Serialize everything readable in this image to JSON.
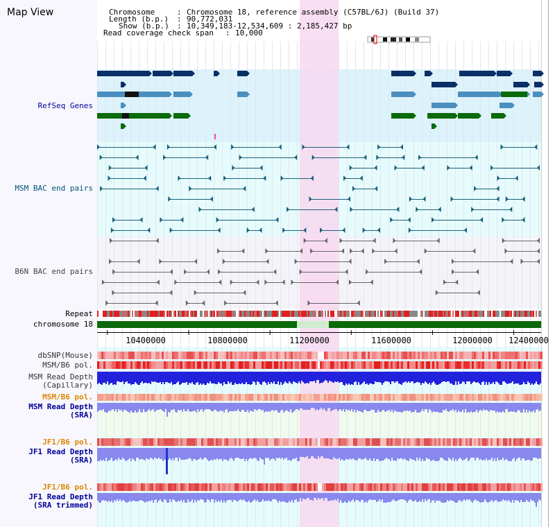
{
  "title": "Map View",
  "header": {
    "chromosome_label": "Chromosome",
    "chromosome_value": "Chromosome 18, reference assembly (C57BL/6J) (Build 37)",
    "length_label": "Length (b.p.)",
    "length_value": "90,772,031",
    "show_label": "Show (b.p.)",
    "show_value": "10,349,183-12,534,609 : 2,185,427 bp",
    "coverage_label": "Read coverage check span",
    "coverage_value": "10,000"
  },
  "tracks": {
    "refseq": "RefSeq Genes",
    "msm_bac": "MSM BAC end pairs",
    "b6n_bac": "B6N BAC end pairs",
    "repeat": "Repeat",
    "chromosome": "chromosome 18",
    "dbsnp": "dbSNP(Mouse)",
    "msm_pol": "MSM/B6 pol.",
    "msm_depth_cap_1": "MSM Read Depth",
    "msm_depth_cap_2": "(Capillary)",
    "msm_pol2": "MSM/B6 pol.",
    "msm_depth_sra_1": "MSM Read Depth",
    "msm_depth_sra_2": "(SRA)",
    "jf1_pol": "JF1/B6 pol.",
    "jf1_depth_sra_1": "JF1 Read Depth",
    "jf1_depth_sra_2": "(SRA)",
    "jf1_pol2": "JF1/B6 pol.",
    "jf1_depth_trim_1": "JF1 Read Depth",
    "jf1_depth_trim_2": "(SRA trimmed)"
  },
  "axis": {
    "ticks": [
      "10400000",
      "10800000",
      "11200000",
      "11600000",
      "12000000",
      "12400000"
    ],
    "tick_values": [
      10400000,
      10800000,
      11200000,
      11600000,
      12000000,
      12400000
    ],
    "range": [
      10349183,
      12534609
    ]
  },
  "colors": {
    "refseq_bg": "#ddf3fb",
    "highlight": "#f8d8f0",
    "track_bg": "#e6fcfc",
    "gene_dark": "#0a2e66",
    "gene_mid": "#4a8fbf",
    "gene_green": "#0a6a0a",
    "msm_line": "#1a5e7a",
    "b6n_line": "#666666",
    "depth_blue": "#2222dd",
    "depth_sra": "#8888ee",
    "chrom_green": "#0a6a0a",
    "label_blue": "#000099",
    "label_orange": "#dd8800",
    "label_teal": "#005577"
  }
}
